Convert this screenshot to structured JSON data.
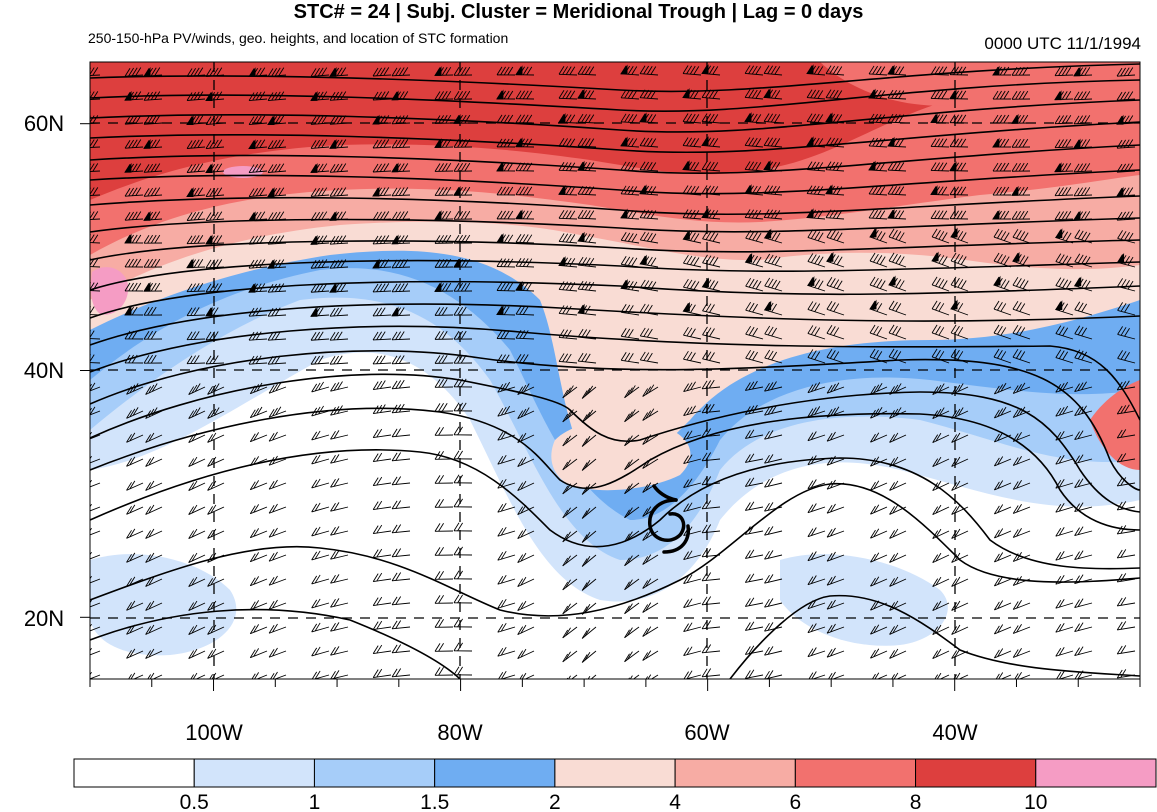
{
  "title": "STC# = 24 | Subj. Cluster = Meridional Trough | Lag = 0 days",
  "subtitle": "250-150-hPa PV/winds, geo. heights, and location of STC formation",
  "datestamp": "0000 UTC  11/1/1994",
  "map": {
    "lon_range": [
      -110,
      -25
    ],
    "lat_range": [
      15,
      65
    ],
    "lat_ticks": [
      {
        "value": 60,
        "label": "60N"
      },
      {
        "value": 40,
        "label": "40N"
      },
      {
        "value": 20,
        "label": "20N"
      }
    ],
    "lon_ticks": [
      {
        "value": -100,
        "label": "100W"
      },
      {
        "value": -80,
        "label": "80W"
      },
      {
        "value": -60,
        "label": "60W"
      },
      {
        "value": -40,
        "label": "40W"
      }
    ],
    "formation_symbol": "tropical-cyclone-icon",
    "formation_location": {
      "lon": -63.5,
      "lat": 27
    }
  },
  "colorbar": {
    "levels": [
      "0.5",
      "1",
      "1.5",
      "2",
      "4",
      "6",
      "8",
      "10"
    ],
    "colors": [
      "#ffffff",
      "#d2e4fb",
      "#a6cdf9",
      "#6fadf2",
      "#f9dcd4",
      "#f7aca4",
      "#f2716e",
      "#dd3f3e",
      "#f59cc4"
    ]
  }
}
